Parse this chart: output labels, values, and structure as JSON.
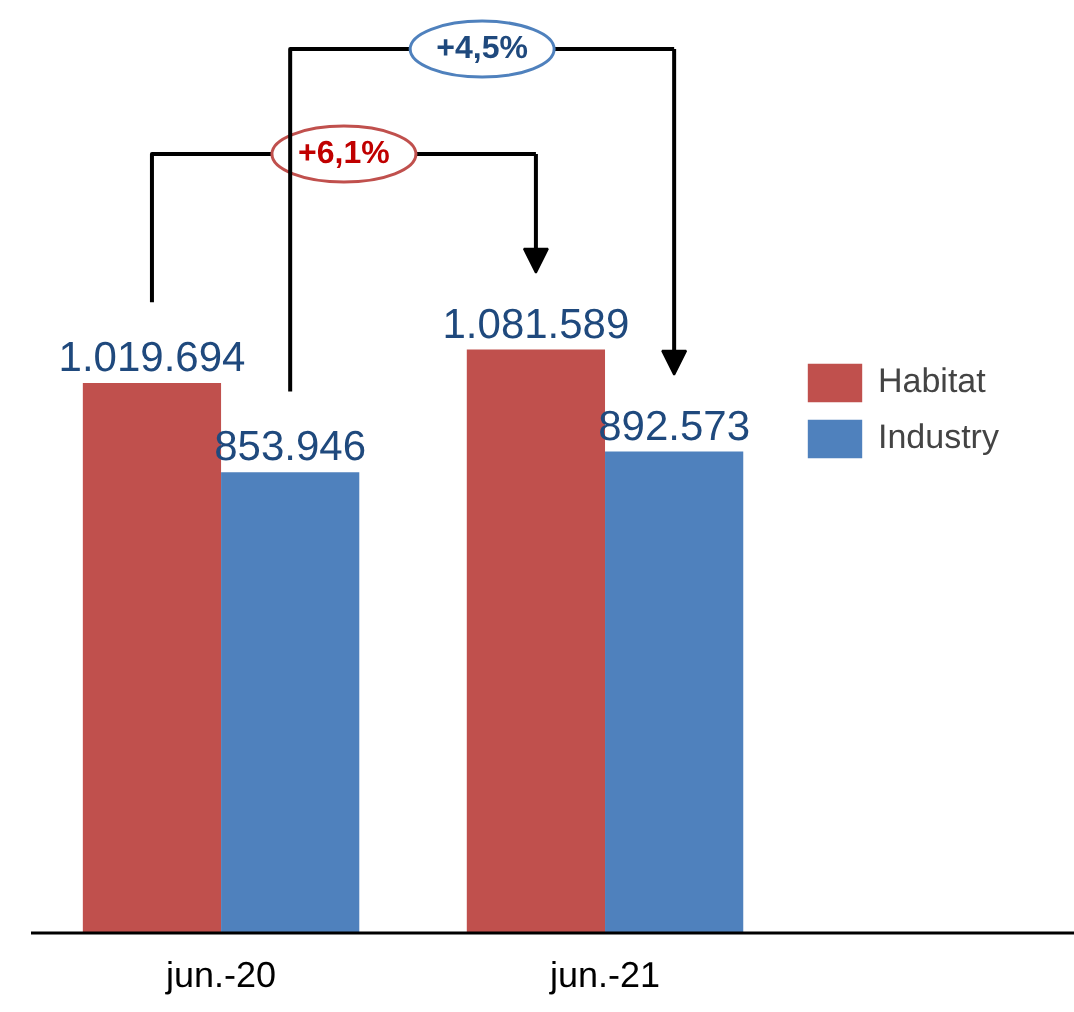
{
  "chart_data": {
    "type": "bar",
    "categories": [
      "jun.-20",
      "jun.-21"
    ],
    "series": [
      {
        "name": "Habitat",
        "color": "#c0504d",
        "values": [
          1019694,
          1081589
        ],
        "value_labels": [
          "1.019.694",
          "1.081.589"
        ]
      },
      {
        "name": "Industry",
        "color": "#4f81bd",
        "values": [
          853946,
          892573
        ],
        "value_labels": [
          "853.946",
          "892.573"
        ]
      }
    ],
    "annotations": [
      "+6,1%",
      "+4,5%"
    ],
    "legend": "right"
  }
}
